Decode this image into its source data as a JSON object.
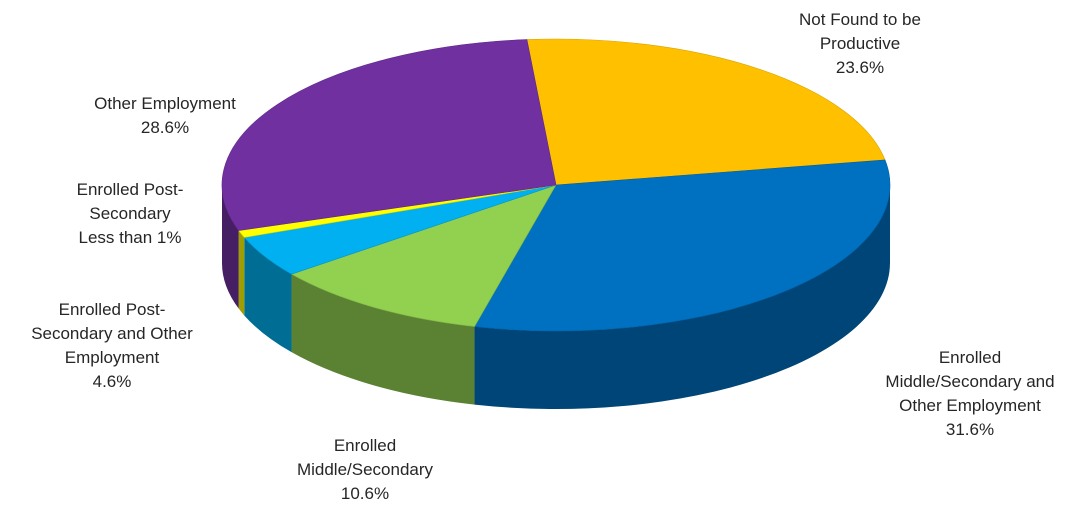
{
  "chart_data": {
    "type": "pie",
    "title": "",
    "slices": [
      {
        "key": "not_found",
        "lines": [
          "Not Found to be",
          "Productive"
        ],
        "pct_label": "23.6%",
        "value": 23.6,
        "color": "#FFC000"
      },
      {
        "key": "mid_sec_other",
        "lines": [
          "Enrolled",
          "Middle/Secondary and",
          "Other Employment"
        ],
        "pct_label": "31.6%",
        "value": 31.6,
        "color": "#0070C0"
      },
      {
        "key": "mid_sec",
        "lines": [
          "Enrolled",
          "Middle/Secondary"
        ],
        "pct_label": "10.6%",
        "value": 10.6,
        "color": "#92D050"
      },
      {
        "key": "post_sec_other",
        "lines": [
          "Enrolled Post-",
          "Secondary and Other",
          "Employment"
        ],
        "pct_label": "4.6%",
        "value": 4.6,
        "color": "#00B0F0"
      },
      {
        "key": "post_sec",
        "lines": [
          "Enrolled Post-",
          "Secondary",
          "Less than 1%"
        ],
        "pct_label": "",
        "value": 0.8,
        "color": "#FFFF00"
      },
      {
        "key": "other_emp",
        "lines": [
          "Other Employment"
        ],
        "pct_label": "28.6%",
        "value": 28.6,
        "color": "#7030A0"
      }
    ],
    "style": "3d-tilted",
    "legend": "none"
  }
}
